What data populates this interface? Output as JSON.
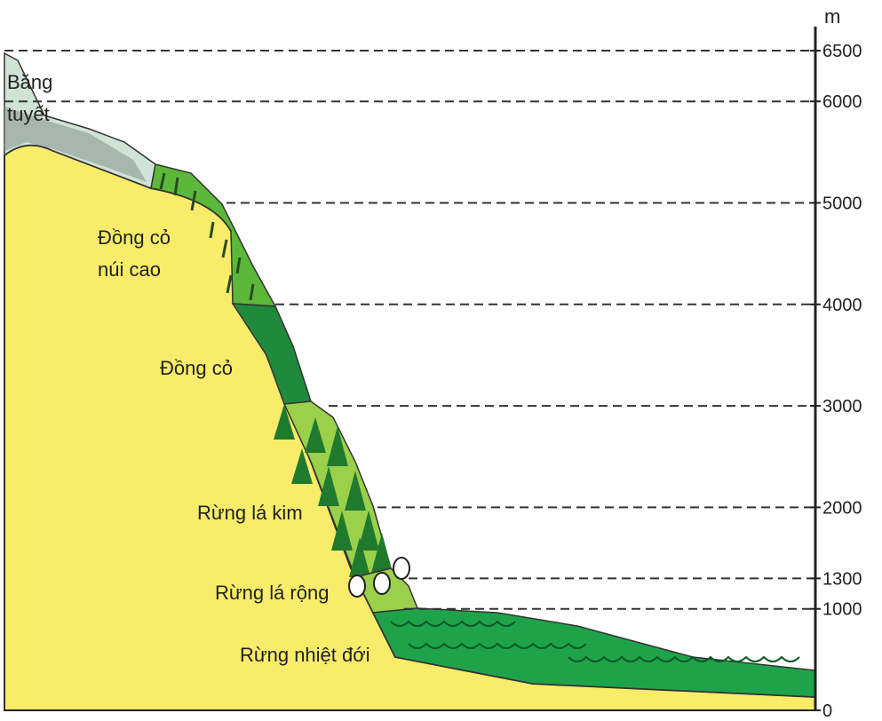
{
  "axis": {
    "unit": "m",
    "ticks": [
      6500,
      6000,
      5000,
      4000,
      3000,
      2000,
      1300,
      1000,
      0
    ]
  },
  "zones": [
    {
      "label": [
        "Băng",
        "tuyết"
      ]
    },
    {
      "label": [
        "Đồng cỏ",
        "núi cao"
      ]
    },
    {
      "label": [
        "Đồng cỏ"
      ]
    },
    {
      "label": [
        "Rừng lá kim"
      ]
    },
    {
      "label": [
        "Rừng lá rộng"
      ]
    },
    {
      "label": [
        "Rừng nhiệt đới"
      ]
    }
  ]
}
